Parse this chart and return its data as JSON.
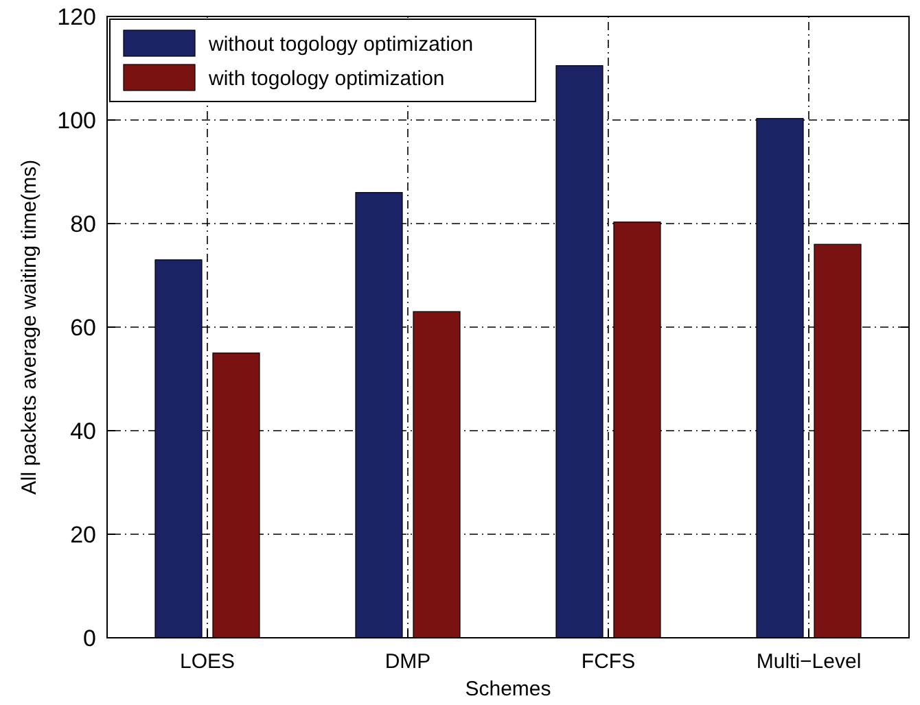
{
  "chart_data": {
    "type": "bar",
    "xlabel": "Schemes",
    "ylabel": "All packets average waiting time(ms)",
    "categories": [
      "LOES",
      "DMP",
      "FCFS",
      "Multi−Level"
    ],
    "series": [
      {
        "name": "without togology optimization",
        "color": "#1c2266",
        "values": [
          73,
          86,
          110.5,
          100.3
        ]
      },
      {
        "name": "with togology optimization",
        "color": "#7a1212",
        "values": [
          55,
          63,
          80.3,
          76
        ]
      }
    ],
    "ylim": [
      0,
      120
    ],
    "yticks": [
      0,
      20,
      40,
      60,
      80,
      100,
      120
    ],
    "grid": true,
    "legend": "top left"
  }
}
